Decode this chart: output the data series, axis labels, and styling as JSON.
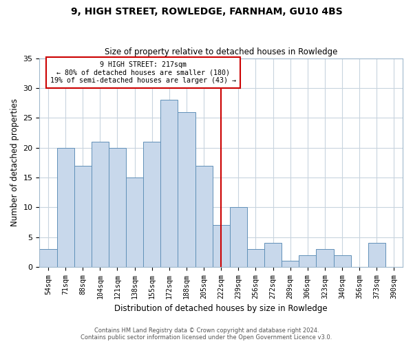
{
  "title": "9, HIGH STREET, ROWLEDGE, FARNHAM, GU10 4BS",
  "subtitle": "Size of property relative to detached houses in Rowledge",
  "xlabel": "Distribution of detached houses by size in Rowledge",
  "ylabel": "Number of detached properties",
  "bin_labels": [
    "54sqm",
    "71sqm",
    "88sqm",
    "104sqm",
    "121sqm",
    "138sqm",
    "155sqm",
    "172sqm",
    "188sqm",
    "205sqm",
    "222sqm",
    "239sqm",
    "256sqm",
    "272sqm",
    "289sqm",
    "306sqm",
    "323sqm",
    "340sqm",
    "356sqm",
    "373sqm",
    "390sqm"
  ],
  "bar_values": [
    3,
    20,
    17,
    21,
    20,
    15,
    21,
    28,
    26,
    17,
    7,
    10,
    3,
    4,
    1,
    2,
    3,
    2,
    0,
    4,
    0
  ],
  "bar_color": "#c8d8eb",
  "bar_edge_color": "#6090b8",
  "annotation_title": "9 HIGH STREET: 217sqm",
  "annotation_line1": "← 80% of detached houses are smaller (180)",
  "annotation_line2": "19% of semi-detached houses are larger (43) →",
  "annotation_box_color": "#ffffff",
  "annotation_box_edge": "#cc0000",
  "property_line_color": "#cc0000",
  "prop_line_index": 10,
  "ylim": [
    0,
    35
  ],
  "yticks": [
    0,
    5,
    10,
    15,
    20,
    25,
    30,
    35
  ],
  "footer_line1": "Contains HM Land Registry data © Crown copyright and database right 2024.",
  "footer_line2": "Contains public sector information licensed under the Open Government Licence v3.0.",
  "background_color": "#ffffff",
  "grid_color": "#c8d4de"
}
